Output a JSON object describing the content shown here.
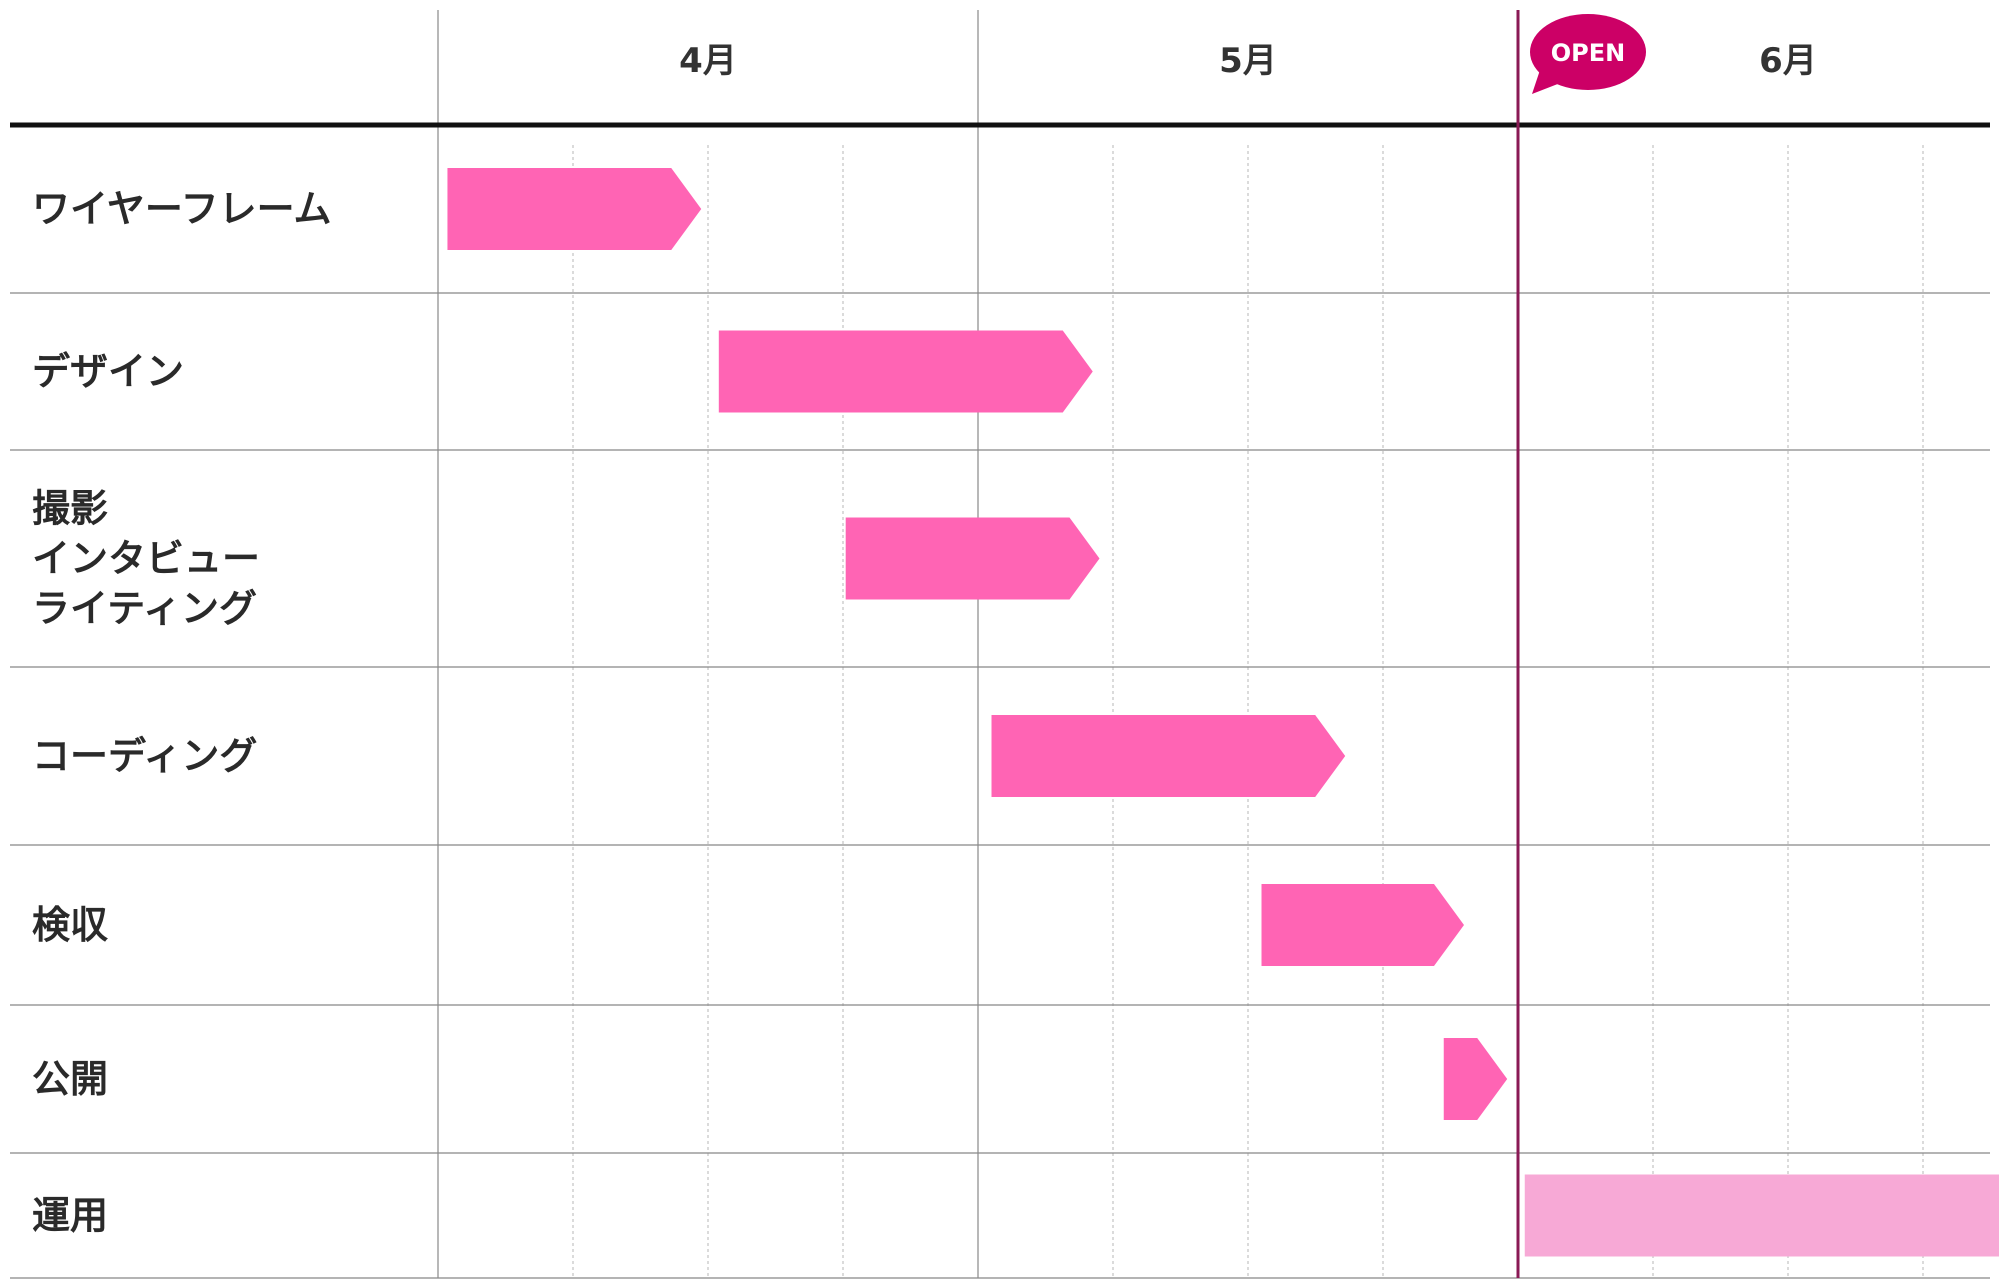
{
  "chart_data": {
    "type": "gantt",
    "months": [
      "4月",
      "5月",
      "6月"
    ],
    "milestone": {
      "label": "OPEN",
      "at_week": 8
    },
    "tasks": [
      {
        "name": "ワイヤーフレーム",
        "label_lines": [
          "ワイヤーフレーム"
        ],
        "start_week": 0.07,
        "end_week": 1.95,
        "color": "#ff64b4"
      },
      {
        "name": "デザイン",
        "label_lines": [
          "デザイン"
        ],
        "start_week": 2.08,
        "end_week": 4.85,
        "color": "#ff64b4"
      },
      {
        "name": "撮影 インタビュー ライティング",
        "label_lines": [
          "撮影",
          "インタビュー",
          "ライティング"
        ],
        "start_week": 3.02,
        "end_week": 4.9,
        "color": "#ff64b4"
      },
      {
        "name": "コーディング",
        "label_lines": [
          "コーディング"
        ],
        "start_week": 4.1,
        "end_week": 6.72,
        "color": "#ff64b4"
      },
      {
        "name": "検収",
        "label_lines": [
          "検収"
        ],
        "start_week": 6.1,
        "end_week": 7.6,
        "color": "#ff64b4"
      },
      {
        "name": "公開",
        "label_lines": [
          "公開"
        ],
        "start_week": 7.45,
        "end_week": 7.92,
        "color": "#ff64b4"
      },
      {
        "name": "運用",
        "label_lines": [
          "運用"
        ],
        "start_week": 8.05,
        "end_week": 11.94,
        "color": "#f7a9d6"
      }
    ],
    "colors": {
      "milestone": "#cc0066",
      "milestone_line": "#8a1a55",
      "grid_major": "#888888",
      "grid_minor": "#cfcfcf",
      "header_line": "#111111"
    },
    "weeks_per_month": 4,
    "grid": true
  }
}
